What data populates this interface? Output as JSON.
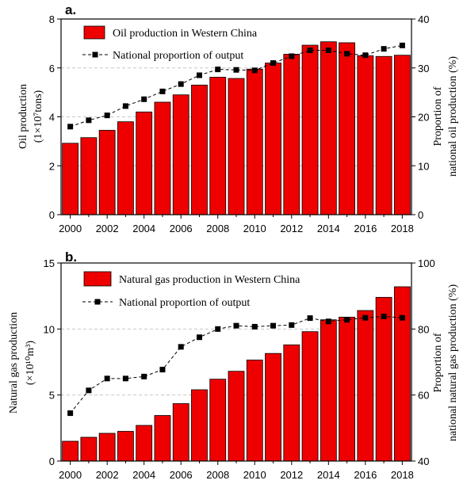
{
  "chart_data": [
    {
      "type": "bar",
      "panel_label": "a.",
      "categories": [
        "2000",
        "2001",
        "2002",
        "2003",
        "2004",
        "2005",
        "2006",
        "2007",
        "2008",
        "2009",
        "2010",
        "2011",
        "2012",
        "2013",
        "2014",
        "2015",
        "2016",
        "2017",
        "2018"
      ],
      "x_tick_labels": [
        "2000",
        "2002",
        "2004",
        "2006",
        "2008",
        "2010",
        "2012",
        "2014",
        "2016",
        "2018"
      ],
      "ylabel_left_line1": "Oil production",
      "ylabel_left_line2": "(1×10⁷tons)",
      "ylabel_right_line1": "Proportion of",
      "ylabel_right_line2": "national oil production (%)",
      "ylim_left": [
        0,
        8
      ],
      "ylim_right": [
        0,
        40
      ],
      "left_ticks": [
        "0",
        "2",
        "4",
        "6",
        "8"
      ],
      "right_ticks": [
        "0",
        "10",
        "20",
        "30",
        "40"
      ],
      "series": [
        {
          "name": "Oil production in Western China",
          "kind": "bar",
          "axis": "left",
          "color": "#ee0000",
          "values": [
            2.92,
            3.15,
            3.45,
            3.8,
            4.2,
            4.6,
            4.9,
            5.3,
            5.62,
            5.57,
            5.95,
            6.2,
            6.56,
            6.93,
            7.07,
            7.03,
            6.5,
            6.47,
            6.52
          ]
        },
        {
          "name": "National proportion of output",
          "kind": "line",
          "axis": "right",
          "color": "#000000",
          "values": [
            18.0,
            19.3,
            20.3,
            22.2,
            23.6,
            25.2,
            26.7,
            28.5,
            29.7,
            29.6,
            29.5,
            31.0,
            32.4,
            33.6,
            33.6,
            32.9,
            32.6,
            33.9,
            34.6
          ]
        }
      ]
    },
    {
      "type": "bar",
      "panel_label": "b.",
      "categories": [
        "2000",
        "2001",
        "2002",
        "2003",
        "2004",
        "2005",
        "2006",
        "2007",
        "2008",
        "2009",
        "2010",
        "2011",
        "2012",
        "2013",
        "2014",
        "2015",
        "2016",
        "2017",
        "2018"
      ],
      "x_tick_labels": [
        "2000",
        "2002",
        "2004",
        "2006",
        "2008",
        "2010",
        "2012",
        "2014",
        "2016",
        "2018"
      ],
      "ylabel_left_line1": "Natural gas production",
      "ylabel_left_line2": "(×10¹⁰m³)",
      "ylabel_right_line1": "Proportion of",
      "ylabel_right_line2": "national natural gas production (%)",
      "ylim_left": [
        0,
        15
      ],
      "ylim_right": [
        40,
        100
      ],
      "left_ticks": [
        "0",
        "5",
        "10",
        "15"
      ],
      "right_ticks": [
        "40",
        "60",
        "80",
        "100"
      ],
      "series": [
        {
          "name": "Natural gas production in Western China",
          "kind": "bar",
          "axis": "left",
          "color": "#ee0000",
          "values": [
            1.5,
            1.8,
            2.1,
            2.25,
            2.7,
            3.45,
            4.35,
            5.4,
            6.2,
            6.8,
            7.65,
            8.15,
            8.8,
            9.8,
            10.7,
            10.9,
            11.4,
            12.4,
            13.2
          ]
        },
        {
          "name": "National proportion of output",
          "kind": "line",
          "axis": "right",
          "color": "#000000",
          "values": [
            54.5,
            61.4,
            65.0,
            65.0,
            65.6,
            67.7,
            74.6,
            77.5,
            80.0,
            81.0,
            80.7,
            81.0,
            81.2,
            83.3,
            82.3,
            82.8,
            83.4,
            83.8,
            83.4
          ]
        }
      ]
    }
  ]
}
